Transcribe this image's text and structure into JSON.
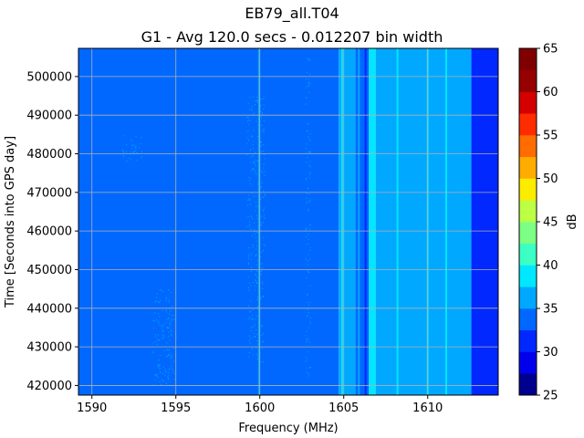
{
  "chart_data": {
    "type": "heatmap",
    "title": "EB79_all.T04",
    "subtitle": "G1 - Avg 120.0 secs - 0.012207 bin width",
    "xlabel": "Frequency (MHz)",
    "ylabel": "Time [Seconds into GPS day]",
    "colorbar_label": "dB",
    "xlim": [
      1589.2,
      1614.2
    ],
    "ylim": [
      417500,
      507300
    ],
    "x_ticks": [
      1590,
      1595,
      1600,
      1605,
      1610
    ],
    "y_ticks": [
      420000,
      430000,
      440000,
      450000,
      460000,
      470000,
      480000,
      490000,
      500000
    ],
    "grid": true,
    "colorbar": {
      "min": 25,
      "max": 65,
      "step": 2.5,
      "ticks": [
        25,
        30,
        35,
        40,
        45,
        50,
        55,
        60,
        65
      ],
      "colors": [
        "#00008f",
        "#0000ed",
        "#0028ff",
        "#0068ff",
        "#00a8ff",
        "#00e8ff",
        "#3cffc4",
        "#7cff84",
        "#bcff44",
        "#fcec00",
        "#ffac00",
        "#ff6c00",
        "#ff2c00",
        "#d40000",
        "#960000",
        "#800000"
      ]
    },
    "bands": [
      {
        "x0": 1589.2,
        "x1": 1604.7,
        "level_db": 32.5
      },
      {
        "x0": 1604.7,
        "x1": 1605.7,
        "level_db": 35
      },
      {
        "x0": 1605.7,
        "x1": 1606.5,
        "level_db": 32.5
      },
      {
        "x0": 1606.5,
        "x1": 1606.9,
        "level_db": 37.5
      },
      {
        "x0": 1606.9,
        "x1": 1612.6,
        "level_db": 35
      },
      {
        "x0": 1612.6,
        "x1": 1614.2,
        "level_db": 30
      }
    ],
    "lines": [
      {
        "x": 1599.95,
        "level_db": 35
      },
      {
        "x": 1604.9,
        "level_db": 37.5
      },
      {
        "x": 1605.9,
        "level_db": 35
      },
      {
        "x": 1606.3,
        "level_db": 30
      },
      {
        "x": 1606.7,
        "level_db": 37.5
      },
      {
        "x": 1608.2,
        "level_db": 37.5
      },
      {
        "x": 1610.0,
        "level_db": 37.5
      },
      {
        "x": 1611.1,
        "level_db": 37.5
      }
    ],
    "speckle_regions": [
      {
        "x0": 1593.6,
        "x1": 1595.0,
        "y0": 420000,
        "y1": 445000,
        "level_db": 35
      },
      {
        "x0": 1599.2,
        "x1": 1600.3,
        "y0": 455000,
        "y1": 495000,
        "level_db": 35
      },
      {
        "x0": 1599.3,
        "x1": 1600.2,
        "y0": 425000,
        "y1": 455000,
        "level_db": 35
      },
      {
        "x0": 1591.8,
        "x1": 1593.0,
        "y0": 478000,
        "y1": 485000,
        "level_db": 35
      },
      {
        "x0": 1602.7,
        "x1": 1603.0,
        "y0": 420000,
        "y1": 505000,
        "level_db": 35
      }
    ]
  }
}
